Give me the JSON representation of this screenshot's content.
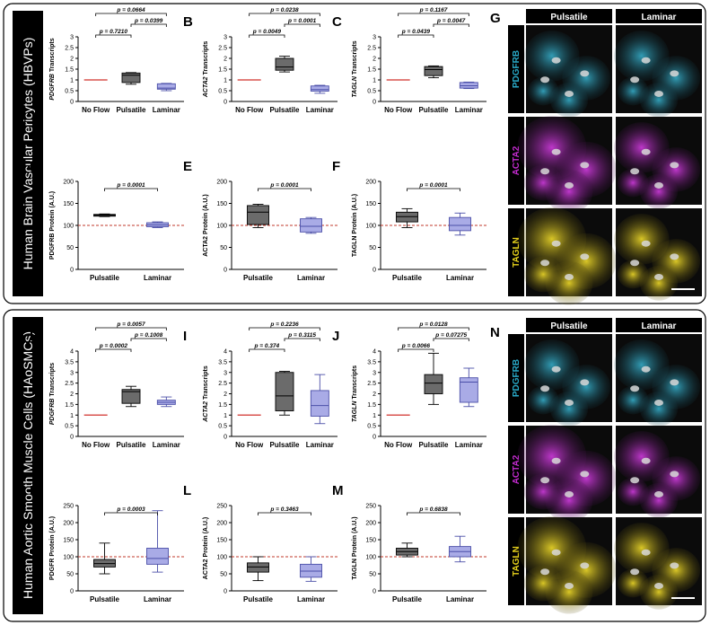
{
  "section1": {
    "banner": "Human Brain Vascular Pericytes (HBVPs)"
  },
  "section2": {
    "banner": "Human Aortic Smooth Muscle Cells (HAoSMCs)"
  },
  "images": {
    "G": {
      "letter": "G",
      "cols": [
        "Pulsatile",
        "Laminar"
      ],
      "rows": [
        "PDGFRB",
        "ACTA2",
        "TAGLN"
      ]
    },
    "N": {
      "letter": "N",
      "cols": [
        "Pulsatile",
        "Laminar"
      ],
      "rows": [
        "PDGFRB",
        "ACTA2",
        "TAGLN"
      ]
    }
  },
  "colors": {
    "pulsatile": "#6b6b6b",
    "laminar": "#a9abe6",
    "noflow": "#d9534f",
    "cyan": "#29a9c7",
    "magenta": "#c42bd0",
    "yellow": "#e7d21c"
  },
  "chart_data": [
    {
      "id": "A",
      "type": "box",
      "ylabel": "PDGFRB Transcripts",
      "ylabel_italic": "PDGFRB",
      "ylabel_rest": " Transcripts",
      "ylim": [
        0,
        3
      ],
      "yticks": [
        "0",
        "0.5",
        "1",
        "1.5",
        "2",
        "2.5",
        "3"
      ],
      "categories": [
        "No Flow",
        "Pulsatile",
        "Laminar"
      ],
      "boxes": [
        {
          "type": "line",
          "value": 1
        },
        {
          "min": 0.8,
          "q1": 0.88,
          "median": 1.22,
          "q3": 1.32,
          "max": 1.34
        },
        {
          "min": 0.5,
          "q1": 0.57,
          "median": 0.62,
          "q3": 0.82,
          "max": 0.84
        }
      ],
      "pvals": [
        {
          "from": 0,
          "to": 1,
          "text": "p = 0.7210"
        },
        {
          "from": 1,
          "to": 2,
          "text": "p = 0.0399"
        },
        {
          "from": 0,
          "to": 2,
          "text": "p = 0.0664"
        }
      ]
    },
    {
      "id": "B",
      "type": "box",
      "ylabel": "ACTA2 Transcripts",
      "ylabel_italic": "ACTA2",
      "ylabel_rest": " Transcripts",
      "ylim": [
        0,
        3
      ],
      "yticks": [
        "0",
        "0.5",
        "1",
        "1.5",
        "2",
        "2.5",
        "3"
      ],
      "categories": [
        "No Flow",
        "Pulsatile",
        "Laminar"
      ],
      "boxes": [
        {
          "type": "line",
          "value": 1
        },
        {
          "min": 1.37,
          "q1": 1.45,
          "median": 1.6,
          "q3": 2.0,
          "max": 2.1
        },
        {
          "min": 0.38,
          "q1": 0.48,
          "median": 0.55,
          "q3": 0.72,
          "max": 0.75
        }
      ],
      "pvals": [
        {
          "from": 0,
          "to": 1,
          "text": "p = 0.0049"
        },
        {
          "from": 1,
          "to": 2,
          "text": "p = 0.0001"
        },
        {
          "from": 0,
          "to": 2,
          "text": "p = 0.0238"
        }
      ]
    },
    {
      "id": "C",
      "type": "box",
      "ylabel": "TAGLN Transcripts",
      "ylabel_italic": "TAGLN",
      "ylabel_rest": " Transcripts",
      "ylim": [
        0,
        3
      ],
      "yticks": [
        "0",
        "0.5",
        "1",
        "1.5",
        "2",
        "2.5",
        "3"
      ],
      "categories": [
        "No Flow",
        "Pulsatile",
        "Laminar"
      ],
      "boxes": [
        {
          "type": "line",
          "value": 1
        },
        {
          "min": 1.1,
          "q1": 1.2,
          "median": 1.48,
          "q3": 1.62,
          "max": 1.65
        },
        {
          "min": 0.6,
          "q1": 0.62,
          "median": 0.73,
          "q3": 0.88,
          "max": 0.9
        }
      ],
      "pvals": [
        {
          "from": 0,
          "to": 1,
          "text": "p = 0.0439"
        },
        {
          "from": 1,
          "to": 2,
          "text": "p = 0.0047"
        },
        {
          "from": 0,
          "to": 2,
          "text": "p = 0.1167"
        }
      ]
    },
    {
      "id": "D",
      "type": "box",
      "ylabel": "PDGFRB Protein (A.U.)",
      "ylim": [
        0,
        200
      ],
      "yticks": [
        "0",
        "50",
        "100",
        "150",
        "200"
      ],
      "refline": 100,
      "categories": [
        "Pulsatile",
        "Laminar"
      ],
      "boxes": [
        {
          "min": 120,
          "q1": 121,
          "median": 123,
          "q3": 125,
          "max": 126
        },
        {
          "min": 95,
          "q1": 97,
          "median": 101,
          "q3": 106,
          "max": 108
        }
      ],
      "pvals": [
        {
          "from": 0,
          "to": 1,
          "text": "p = 0.0001"
        }
      ]
    },
    {
      "id": "E",
      "type": "box",
      "ylabel": "ACTA2 Protein (A.U.)",
      "ylim": [
        0,
        200
      ],
      "yticks": [
        "0",
        "50",
        "100",
        "150",
        "200"
      ],
      "refline": 100,
      "categories": [
        "Pulsatile",
        "Laminar"
      ],
      "boxes": [
        {
          "min": 95,
          "q1": 102,
          "median": 130,
          "q3": 145,
          "max": 148
        },
        {
          "min": 82,
          "q1": 85,
          "median": 98,
          "q3": 115,
          "max": 118
        }
      ],
      "pvals": [
        {
          "from": 0,
          "to": 1,
          "text": "p = 0.0001"
        }
      ]
    },
    {
      "id": "F",
      "type": "box",
      "ylabel": "TAGLN Protein (A.U.)",
      "ylim": [
        0,
        200
      ],
      "yticks": [
        "0",
        "50",
        "100",
        "150",
        "200"
      ],
      "refline": 100,
      "categories": [
        "Pulsatile",
        "Laminar"
      ],
      "boxes": [
        {
          "min": 95,
          "q1": 108,
          "median": 120,
          "q3": 130,
          "max": 138
        },
        {
          "min": 78,
          "q1": 88,
          "median": 100,
          "q3": 118,
          "max": 128
        }
      ],
      "pvals": [
        {
          "from": 0,
          "to": 1,
          "text": "p = 0.0001"
        }
      ]
    },
    {
      "id": "H",
      "type": "box",
      "ylabel": "PDGFRB Transcripts",
      "ylabel_italic": "PDGFRB",
      "ylabel_rest": " Transcripts",
      "ylim": [
        0,
        4
      ],
      "yticks": [
        "0",
        "0.5",
        "1",
        "1.5",
        "2",
        "2.5",
        "3",
        "3.5",
        "4"
      ],
      "categories": [
        "No Flow",
        "Pulsatile",
        "Laminar"
      ],
      "boxes": [
        {
          "type": "line",
          "value": 1
        },
        {
          "min": 1.4,
          "q1": 1.55,
          "median": 2.1,
          "q3": 2.2,
          "max": 2.35
        },
        {
          "min": 1.4,
          "q1": 1.5,
          "median": 1.6,
          "q3": 1.7,
          "max": 1.85
        }
      ],
      "pvals": [
        {
          "from": 0,
          "to": 1,
          "text": "p = 0.0002"
        },
        {
          "from": 1,
          "to": 2,
          "text": "p = 0.1008"
        },
        {
          "from": 0,
          "to": 2,
          "text": "p = 0.0057"
        }
      ]
    },
    {
      "id": "I",
      "type": "box",
      "ylabel": "ACTA2 Transcripts",
      "ylabel_italic": "ACTA2",
      "ylabel_rest": " Transcripts",
      "ylim": [
        0,
        4
      ],
      "yticks": [
        "0",
        "0.5",
        "1",
        "1.5",
        "2",
        "2.5",
        "3",
        "3.5",
        "4"
      ],
      "categories": [
        "No Flow",
        "Pulsatile",
        "Laminar"
      ],
      "boxes": [
        {
          "type": "line",
          "value": 1
        },
        {
          "min": 1.0,
          "q1": 1.2,
          "median": 1.9,
          "q3": 3.0,
          "max": 3.05
        },
        {
          "min": 0.6,
          "q1": 0.95,
          "median": 1.45,
          "q3": 2.15,
          "max": 2.9
        }
      ],
      "pvals": [
        {
          "from": 0,
          "to": 1,
          "text": "p = 0.374"
        },
        {
          "from": 1,
          "to": 2,
          "text": "p = 0.3115"
        },
        {
          "from": 0,
          "to": 2,
          "text": "p = 0.2236"
        }
      ]
    },
    {
      "id": "J",
      "type": "box",
      "ylabel": "TAGLN Transcripts",
      "ylabel_italic": "TAGLN",
      "ylabel_rest": " Transcripts",
      "ylim": [
        0,
        4
      ],
      "yticks": [
        "0",
        "0.5",
        "1",
        "1.5",
        "2",
        "2.5",
        "3",
        "3.5",
        "4"
      ],
      "categories": [
        "No Flow",
        "Pulsatile",
        "Laminar"
      ],
      "boxes": [
        {
          "type": "line",
          "value": 1
        },
        {
          "min": 1.5,
          "q1": 2.0,
          "median": 2.5,
          "q3": 2.9,
          "max": 3.9
        },
        {
          "min": 1.4,
          "q1": 1.6,
          "median": 2.55,
          "q3": 2.75,
          "max": 3.2
        }
      ],
      "pvals": [
        {
          "from": 0,
          "to": 1,
          "text": "p = 0.0066"
        },
        {
          "from": 1,
          "to": 2,
          "text": "p = 0.07275"
        },
        {
          "from": 0,
          "to": 2,
          "text": "p = 0.0128"
        }
      ]
    },
    {
      "id": "K",
      "type": "box",
      "ylabel": "PDGFR Protein (A.U.)",
      "ylim": [
        0,
        250
      ],
      "yticks": [
        "0",
        "50",
        "100",
        "150",
        "200",
        "250"
      ],
      "refline": 100,
      "categories": [
        "Pulsatile",
        "Laminar"
      ],
      "boxes": [
        {
          "min": 50,
          "q1": 70,
          "median": 80,
          "q3": 92,
          "max": 140
        },
        {
          "min": 55,
          "q1": 78,
          "median": 95,
          "q3": 125,
          "max": 235
        }
      ],
      "pvals": [
        {
          "from": 0,
          "to": 1,
          "text": "p = 0.0003"
        }
      ]
    },
    {
      "id": "L",
      "type": "box",
      "ylabel": "ACTA2 Protein (A.U.)",
      "ylim": [
        0,
        250
      ],
      "yticks": [
        "0",
        "50",
        "100",
        "150",
        "200",
        "250"
      ],
      "refline": 100,
      "categories": [
        "Pulsatile",
        "Laminar"
      ],
      "boxes": [
        {
          "min": 30,
          "q1": 55,
          "median": 70,
          "q3": 82,
          "max": 100
        },
        {
          "min": 28,
          "q1": 40,
          "median": 58,
          "q3": 78,
          "max": 100
        }
      ],
      "pvals": [
        {
          "from": 0,
          "to": 1,
          "text": "p = 0.3463"
        }
      ]
    },
    {
      "id": "M",
      "type": "box",
      "ylabel": "TAGLN Protein (A.U.)",
      "ylim": [
        0,
        250
      ],
      "yticks": [
        "0",
        "50",
        "100",
        "150",
        "200",
        "250"
      ],
      "refline": 100,
      "categories": [
        "Pulsatile",
        "Laminar"
      ],
      "boxes": [
        {
          "min": 100,
          "q1": 105,
          "median": 115,
          "q3": 125,
          "max": 140
        },
        {
          "min": 85,
          "q1": 100,
          "median": 115,
          "q3": 130,
          "max": 160
        }
      ],
      "pvals": [
        {
          "from": 0,
          "to": 1,
          "text": "p = 0.6838"
        }
      ]
    }
  ]
}
